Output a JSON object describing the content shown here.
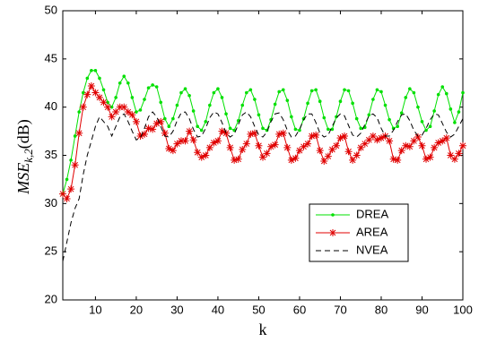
{
  "chart_data": {
    "type": "line",
    "x_label": "k",
    "y_label": {
      "main": "MSE",
      "subscript": "k,2",
      "suffix": "(dB)"
    },
    "x": [
      2,
      3,
      4,
      5,
      6,
      7,
      8,
      9,
      10,
      11,
      12,
      13,
      14,
      15,
      16,
      17,
      18,
      19,
      20,
      21,
      22,
      23,
      24,
      25,
      26,
      27,
      28,
      29,
      30,
      31,
      32,
      33,
      34,
      35,
      36,
      37,
      38,
      39,
      40,
      41,
      42,
      43,
      44,
      45,
      46,
      47,
      48,
      49,
      50,
      51,
      52,
      53,
      54,
      55,
      56,
      57,
      58,
      59,
      60,
      61,
      62,
      63,
      64,
      65,
      66,
      67,
      68,
      69,
      70,
      71,
      72,
      73,
      74,
      75,
      76,
      77,
      78,
      79,
      80,
      81,
      82,
      83,
      84,
      85,
      86,
      87,
      88,
      89,
      90,
      91,
      92,
      93,
      94,
      95,
      96,
      97,
      98,
      99,
      100
    ],
    "series": [
      {
        "name": "DREA",
        "color": "#00e000",
        "marker": "dot",
        "dashed": false,
        "values": [
          31,
          32.5,
          34.5,
          37,
          39.5,
          41.5,
          43,
          43.8,
          43.8,
          43,
          41.8,
          40.5,
          40,
          41,
          42.5,
          43.2,
          42.5,
          41,
          39.5,
          39.7,
          40.8,
          42,
          42.3,
          42.1,
          40.5,
          38.8,
          38,
          38.8,
          40.2,
          41.5,
          41.9,
          41.2,
          39.6,
          38,
          37.6,
          38.5,
          40.2,
          41.5,
          41.9,
          41,
          39.3,
          37.8,
          37.6,
          38.6,
          40.2,
          41.5,
          41.8,
          40.8,
          39.2,
          37.8,
          37.6,
          38.7,
          40.3,
          41.6,
          41.8,
          40.7,
          39,
          37.7,
          37.6,
          38.8,
          40.4,
          41.7,
          41.8,
          40.6,
          38.9,
          37.7,
          37.7,
          39,
          40.6,
          41.8,
          41.7,
          40.4,
          38.8,
          37.8,
          37.9,
          39.2,
          40.8,
          41.8,
          41.6,
          40.2,
          38.7,
          37.8,
          38,
          39.4,
          41,
          41.9,
          41.5,
          40,
          38.5,
          37.6,
          38,
          39.6,
          41.3,
          42.1,
          41.4,
          39.8,
          38.4,
          39.5,
          41.5
        ]
      },
      {
        "name": "AREA",
        "color": "#e00000",
        "marker": "star",
        "dashed": false,
        "values": [
          31,
          30.5,
          31.5,
          34,
          37.3,
          40,
          41.3,
          42.2,
          41.5,
          41,
          40.5,
          40,
          39,
          39.5,
          40,
          40,
          39.5,
          39.2,
          38.5,
          37,
          37.2,
          37.8,
          37.7,
          38.3,
          38.5,
          37.3,
          35.7,
          35.5,
          36.2,
          36.5,
          36.5,
          37.5,
          36.6,
          35.3,
          34.8,
          35,
          35.8,
          36.3,
          36.5,
          37.5,
          37.3,
          35.8,
          34.5,
          34.6,
          35.6,
          36.2,
          37.2,
          37.3,
          36,
          34.8,
          35.2,
          35.9,
          36.1,
          37.2,
          37.3,
          35.8,
          34.5,
          34.7,
          35.5,
          35.9,
          36.2,
          37,
          37.1,
          35.5,
          34.4,
          34.9,
          35.6,
          36,
          36.8,
          37,
          35.4,
          34.5,
          35,
          35.8,
          36.2,
          36.6,
          37,
          36.6,
          36.8,
          37,
          36.5,
          34.6,
          34.5,
          35.5,
          36,
          35.9,
          36.5,
          36.9,
          36,
          34.6,
          34.8,
          35.8,
          36.3,
          36.5,
          36.8,
          35,
          34.6,
          35.2,
          36
        ]
      },
      {
        "name": "NVEA",
        "color": "#000000",
        "marker": "none",
        "dashed": true,
        "values": [
          24,
          26,
          28,
          29.5,
          30.5,
          33,
          35,
          36.5,
          38,
          39,
          38.5,
          38,
          37,
          38,
          39,
          39.3,
          38.5,
          37.5,
          36.6,
          36.8,
          37.8,
          39,
          39.5,
          39,
          38,
          37,
          36.9,
          37.5,
          38.6,
          39.4,
          39.5,
          38.8,
          37.7,
          36.9,
          37,
          37.8,
          38.9,
          39.5,
          39.3,
          38.4,
          37.3,
          36.9,
          37.2,
          38.2,
          39.2,
          39.5,
          39,
          38,
          37.1,
          36.9,
          37.4,
          38.5,
          39.3,
          39.4,
          38.7,
          37.6,
          36.9,
          37,
          37.7,
          38.7,
          39.3,
          39.3,
          38.4,
          37.3,
          36.9,
          37.1,
          38,
          38.9,
          39.3,
          39.1,
          38.1,
          37.1,
          36.9,
          37.3,
          38.2,
          39.1,
          39.3,
          38.9,
          37.8,
          37,
          37,
          37.6,
          38.5,
          39.2,
          39.3,
          38.6,
          37.6,
          37,
          37.1,
          37.8,
          38.7,
          39.3,
          39.2,
          38.3,
          37.4,
          36.9,
          37.2,
          38,
          38.8
        ]
      }
    ],
    "xlim": [
      2,
      100
    ],
    "ylim": [
      20,
      50
    ],
    "xticks": [
      10,
      20,
      30,
      40,
      50,
      60,
      70,
      80,
      90,
      100
    ],
    "yticks": [
      20,
      25,
      30,
      35,
      40,
      45,
      50
    ],
    "grid": false,
    "legend": "lower right"
  }
}
